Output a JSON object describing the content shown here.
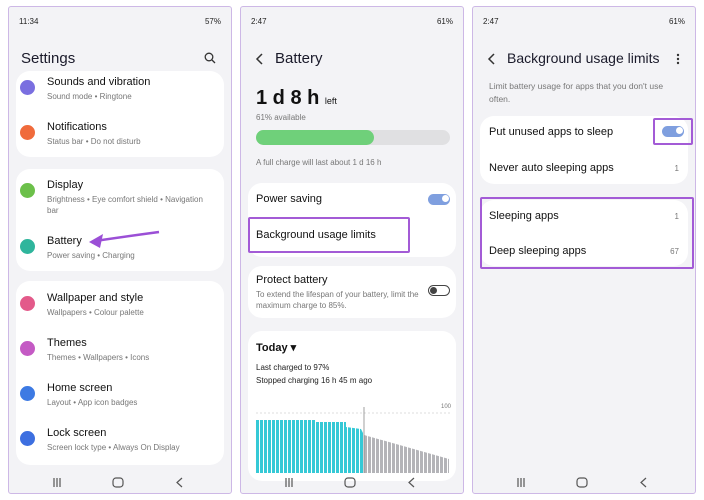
{
  "screens": [
    {
      "time": "11:34",
      "battery": "57%",
      "title": "Settings",
      "items": [
        {
          "title": "Sounds and vibration",
          "subtitle": "Sound mode • Ringtone"
        },
        {
          "title": "Notifications",
          "subtitle": "Status bar • Do not disturb"
        },
        {
          "title": "Display",
          "subtitle": "Brightness • Eye comfort shield • Navigation bar"
        },
        {
          "title": "Battery",
          "subtitle": "Power saving • Charging"
        },
        {
          "title": "Wallpaper and style",
          "subtitle": "Wallpapers • Colour palette"
        },
        {
          "title": "Themes",
          "subtitle": "Themes • Wallpapers • Icons"
        },
        {
          "title": "Home screen",
          "subtitle": "Layout • App icon badges"
        },
        {
          "title": "Lock screen",
          "subtitle": "Screen lock type • Always On Display"
        }
      ]
    },
    {
      "time": "2:47",
      "battery": "61%",
      "title": "Battery",
      "remaining": "1 d 8 h",
      "remaining_unit": "left",
      "available": "61% available",
      "full_charge_note": "A full charge will last about 1 d 16 h",
      "power_saving": {
        "label": "Power saving",
        "toggle": true
      },
      "background_usage_limits": "Background usage limits",
      "protect_battery": {
        "label": "Protect battery",
        "description": "To extend the lifespan of your battery, limit the maximum charge to 85%.",
        "toggle": false
      },
      "history": {
        "period": "Today",
        "last_charged": "Last charged to 97%",
        "stopped": "Stopped charging 16 h 45 m ago",
        "axis_max": 100
      }
    },
    {
      "time": "2:47",
      "battery": "61%",
      "title": "Background usage limits",
      "description": "Limit battery usage for apps that you don't use often.",
      "sleep_setting": {
        "label": "Put unused apps to sleep",
        "toggle": true
      },
      "lists": [
        {
          "label": "Never auto sleeping apps",
          "count": 1
        },
        {
          "label": "Sleeping apps",
          "count": 1
        },
        {
          "label": "Deep sleeping apps",
          "count": 67
        }
      ]
    }
  ]
}
